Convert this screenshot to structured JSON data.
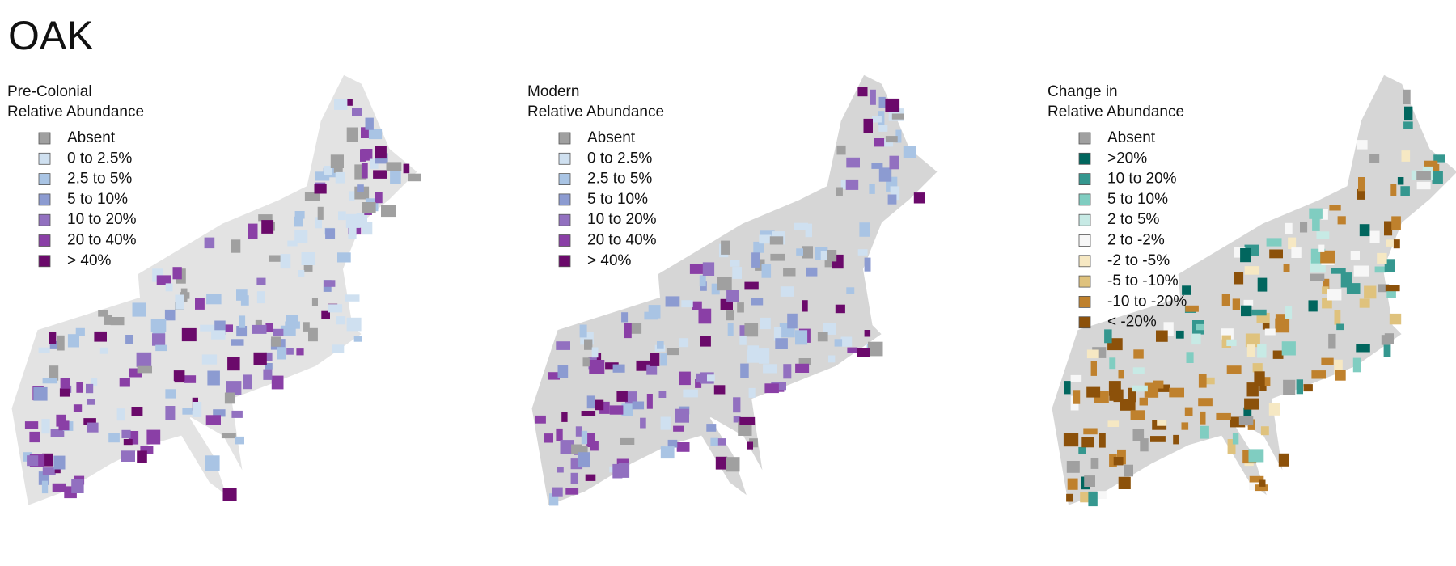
{
  "title": "OAK",
  "panels": [
    {
      "legend_title": [
        "Pre-Colonial",
        "Relative Abundance"
      ],
      "legend": [
        {
          "label": "Absent",
          "color": "#a0a0a0"
        },
        {
          "label": "0 to 2.5%",
          "color": "#cfe0f0"
        },
        {
          "label": "2.5 to 5%",
          "color": "#a9c4e4"
        },
        {
          "label": "5 to 10%",
          "color": "#8c9bd1"
        },
        {
          "label": "10 to 20%",
          "color": "#9270c0"
        },
        {
          "label": "20 to 40%",
          "color": "#8a3fa6"
        },
        {
          "label": "> 40%",
          "color": "#6b0a6b"
        }
      ]
    },
    {
      "legend_title": [
        "Modern",
        "Relative Abundance"
      ],
      "legend": [
        {
          "label": "Absent",
          "color": "#a0a0a0"
        },
        {
          "label": "0 to 2.5%",
          "color": "#cfe0f0"
        },
        {
          "label": "2.5 to 5%",
          "color": "#a9c4e4"
        },
        {
          "label": "5 to 10%",
          "color": "#8c9bd1"
        },
        {
          "label": "10 to 20%",
          "color": "#9270c0"
        },
        {
          "label": "20 to 40%",
          "color": "#8a3fa6"
        },
        {
          "label": "> 40%",
          "color": "#6b0a6b"
        }
      ]
    },
    {
      "legend_title": [
        "Change in",
        "Relative Abundance"
      ],
      "legend": [
        {
          "label": "Absent",
          "color": "#a0a0a0"
        },
        {
          "label": ">20%",
          "color": "#01665e"
        },
        {
          "label": "10 to 20%",
          "color": "#35978f"
        },
        {
          "label": "5 to 10%",
          "color": "#80cdc1"
        },
        {
          "label": "2 to 5%",
          "color": "#c7eae5"
        },
        {
          "label": "2 to -2%",
          "color": "#f7f7f7"
        },
        {
          "label": "-2 to -5%",
          "color": "#f6e8c3"
        },
        {
          "label": "-5 to -10%",
          "color": "#dfc27d"
        },
        {
          "label": "-10 to -20%",
          "color": "#bf812d"
        },
        {
          "label": "< -20%",
          "color": "#8c510a"
        }
      ]
    }
  ]
}
